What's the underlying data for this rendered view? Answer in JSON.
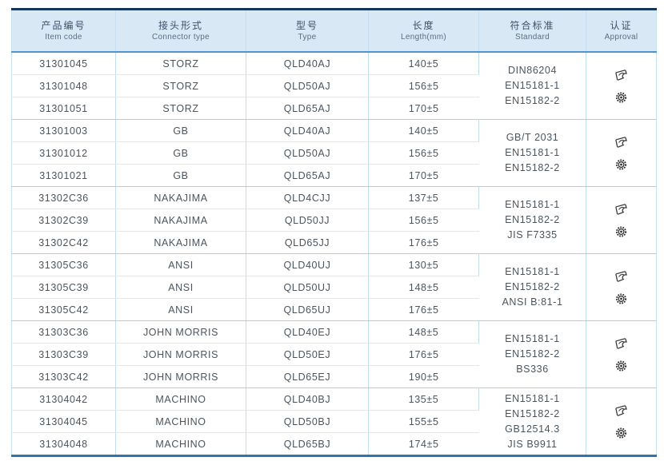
{
  "page": {
    "background": "#ffffff"
  },
  "table": {
    "columns": [
      {
        "zh": "产品编号",
        "en": "Item code"
      },
      {
        "zh": "接头形式",
        "en": "Connector type"
      },
      {
        "zh": "型号",
        "en": "Type"
      },
      {
        "zh": "长度",
        "en": "Length(mm)"
      },
      {
        "zh": "符合标准",
        "en": "Standard"
      },
      {
        "zh": "认证",
        "en": "Approval"
      }
    ],
    "groups": [
      {
        "rows": [
          {
            "item_code": "31301045",
            "connector_type": "STORZ",
            "type": "QLD40AJ",
            "length": "140±5"
          },
          {
            "item_code": "31301048",
            "connector_type": "STORZ",
            "type": "QLD50AJ",
            "length": "156±5"
          },
          {
            "item_code": "31301051",
            "connector_type": "STORZ",
            "type": "QLD65AJ",
            "length": "170±5"
          }
        ],
        "standards": [
          "DIN86204",
          "EN15181-1",
          "EN15182-2"
        ],
        "approval_icons": [
          "cert-emblem-icon",
          "gear-seal-icon"
        ]
      },
      {
        "rows": [
          {
            "item_code": "31301003",
            "connector_type": "GB",
            "type": "QLD40AJ",
            "length": "140±5"
          },
          {
            "item_code": "31301012",
            "connector_type": "GB",
            "type": "QLD50AJ",
            "length": "156±5"
          },
          {
            "item_code": "31301021",
            "connector_type": "GB",
            "type": "QLD65AJ",
            "length": "170±5"
          }
        ],
        "standards": [
          "GB/T 2031",
          "EN15181-1",
          "EN15182-2"
        ],
        "approval_icons": [
          "cert-emblem-icon",
          "gear-seal-icon"
        ]
      },
      {
        "rows": [
          {
            "item_code": "31302C36",
            "connector_type": "NAKAJIMA",
            "type": "QLD4CJJ",
            "length": "137±5"
          },
          {
            "item_code": "31302C39",
            "connector_type": "NAKAJIMA",
            "type": "QLD50JJ",
            "length": "156±5"
          },
          {
            "item_code": "31302C42",
            "connector_type": "NAKAJIMA",
            "type": "QLD65JJ",
            "length": "176±5"
          }
        ],
        "standards": [
          "EN15181-1",
          "EN15182-2",
          "JIS F7335"
        ],
        "approval_icons": [
          "cert-emblem-icon",
          "gear-seal-icon"
        ]
      },
      {
        "rows": [
          {
            "item_code": "31305C36",
            "connector_type": "ANSI",
            "type": "QLD40UJ",
            "length": "130±5"
          },
          {
            "item_code": "31305C39",
            "connector_type": "ANSI",
            "type": "QLD50UJ",
            "length": "148±5"
          },
          {
            "item_code": "31305C42",
            "connector_type": "ANSI",
            "type": "QLD65UJ",
            "length": "176±5"
          }
        ],
        "standards": [
          "EN15181-1",
          "EN15182-2",
          "ANSI B:81-1"
        ],
        "approval_icons": [
          "cert-emblem-icon",
          "gear-seal-icon"
        ]
      },
      {
        "rows": [
          {
            "item_code": "31303C36",
            "connector_type": "JOHN MORRIS",
            "type": "QLD40EJ",
            "length": "148±5"
          },
          {
            "item_code": "31303C39",
            "connector_type": "JOHN MORRIS",
            "type": "QLD50EJ",
            "length": "176±5"
          },
          {
            "item_code": "31303C42",
            "connector_type": "JOHN MORRIS",
            "type": "QLD65EJ",
            "length": "190±5"
          }
        ],
        "standards": [
          "EN15181-1",
          "EN15182-2",
          "BS336"
        ],
        "approval_icons": [
          "cert-emblem-icon",
          "gear-seal-icon"
        ]
      },
      {
        "rows": [
          {
            "item_code": "31304042",
            "connector_type": "MACHINO",
            "type": "QLD40BJ",
            "length": "135±5"
          },
          {
            "item_code": "31304045",
            "connector_type": "MACHINO",
            "type": "QLD50BJ",
            "length": "155±5"
          },
          {
            "item_code": "31304048",
            "connector_type": "MACHINO",
            "type": "QLD65BJ",
            "length": "174±5"
          }
        ],
        "standards": [
          "EN15181-1",
          "EN15182-2",
          "GB12514.3",
          "JIS B9911"
        ],
        "approval_icons": [
          "cert-emblem-icon",
          "gear-seal-icon"
        ]
      }
    ],
    "colors": {
      "header_bg": "#d9e8f5",
      "top_border": "#16355c",
      "bottom_border": "#2e74b5",
      "header_rule": "#4f94cd",
      "row_grid": "#d6ecf7",
      "group_grid": "#a7d2ea",
      "column_grid": "#bfdff0",
      "text": "#4a555f",
      "header_text": "#3f5068"
    }
  }
}
